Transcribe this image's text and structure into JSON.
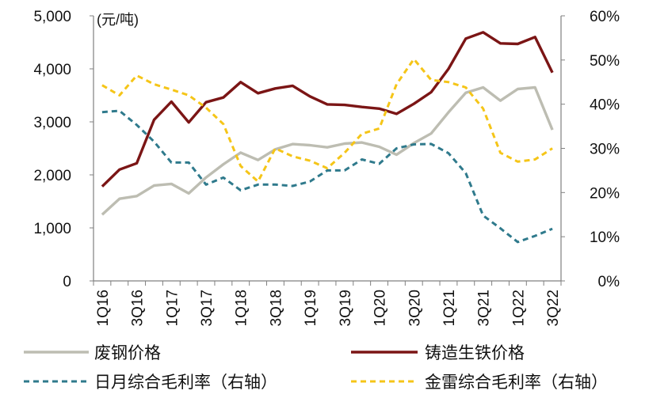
{
  "chart_data": {
    "type": "line",
    "left_unit": "(元/吨)",
    "x": [
      "1Q16",
      "2Q16",
      "3Q16",
      "4Q16",
      "1Q17",
      "2Q17",
      "3Q17",
      "4Q17",
      "1Q18",
      "2Q18",
      "3Q18",
      "4Q18",
      "1Q19",
      "2Q19",
      "3Q19",
      "4Q19",
      "1Q20",
      "2Q20",
      "3Q20",
      "4Q20",
      "1Q21",
      "2Q21",
      "3Q21",
      "4Q21",
      "1Q22",
      "2Q22",
      "3Q22"
    ],
    "x_tick_labels": [
      "1Q16",
      "3Q16",
      "1Q17",
      "3Q17",
      "1Q18",
      "3Q18",
      "1Q19",
      "3Q19",
      "1Q20",
      "3Q20",
      "1Q21",
      "3Q21",
      "1Q22",
      "3Q22"
    ],
    "y_left": {
      "min": 0,
      "max": 5000,
      "ticks": [
        "0",
        "1,000",
        "2,000",
        "3,000",
        "4,000",
        "5,000"
      ]
    },
    "y_right": {
      "min": 0,
      "max": 60,
      "ticks": [
        "0%",
        "10%",
        "20%",
        "30%",
        "40%",
        "50%",
        "60%"
      ]
    },
    "series": [
      {
        "name": "废钢价格",
        "axis": "left",
        "style": "solid",
        "color": "#BDBDB2",
        "values": [
          1250,
          1550,
          1600,
          1800,
          1830,
          1650,
          1950,
          2200,
          2420,
          2280,
          2480,
          2580,
          2560,
          2520,
          2590,
          2610,
          2530,
          2380,
          2600,
          2780,
          3180,
          3550,
          3650,
          3400,
          3620,
          3650,
          2850
        ]
      },
      {
        "name": "铸造生铁价格",
        "axis": "left",
        "style": "solid",
        "color": "#7B1515",
        "values": [
          1780,
          2100,
          2220,
          3040,
          3380,
          2990,
          3370,
          3460,
          3750,
          3540,
          3630,
          3680,
          3480,
          3330,
          3320,
          3280,
          3250,
          3150,
          3340,
          3560,
          4000,
          4570,
          4690,
          4480,
          4470,
          4600,
          3930
        ]
      },
      {
        "name": "日月综合毛利率（右轴）",
        "axis": "right",
        "style": "dashed",
        "color": "#2F7A8C",
        "values": [
          38.2,
          38.5,
          35.3,
          31.5,
          26.8,
          26.8,
          21.8,
          23.4,
          20.5,
          21.8,
          21.8,
          21.5,
          22.5,
          25.0,
          25.0,
          27.5,
          26.5,
          30.0,
          30.9,
          31.0,
          28.9,
          24.4,
          14.8,
          11.9,
          8.8,
          10.2,
          11.8
        ]
      },
      {
        "name": "金雷综合毛利率（右轴）",
        "axis": "right",
        "style": "dashed",
        "color": "#F5C518",
        "values": [
          44.3,
          42.0,
          46.5,
          44.5,
          43.3,
          42.0,
          39.2,
          35.5,
          26.0,
          22.5,
          30.0,
          28.2,
          27.2,
          25.5,
          29.0,
          33.3,
          34.5,
          44.5,
          50.2,
          45.5,
          45.0,
          43.8,
          39.0,
          29.0,
          27.0,
          27.5,
          30.0
        ]
      }
    ],
    "legend_position": "bottom"
  }
}
